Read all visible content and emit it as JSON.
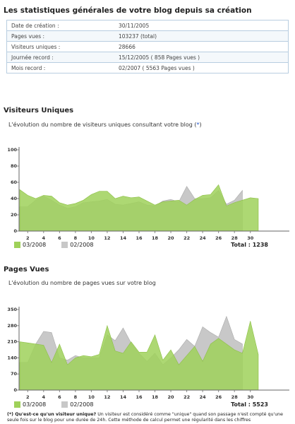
{
  "title": "Les statistiques générales de votre blog depuis sa création",
  "table": {
    "rows": [
      [
        "Date de création :",
        "30/11/2005"
      ],
      [
        "Pages vues :",
        "103237 (total)"
      ],
      [
        "Visiteurs uniques :",
        "28666"
      ],
      [
        "Journée record :",
        "15/12/2005 ( 858 Pages vues )"
      ],
      [
        "Mois record :",
        "02/2007 ( 5563 Pages vues )"
      ]
    ]
  },
  "chart_data": [
    {
      "type": "area",
      "title": "Visiteurs Uniques",
      "subtitle_pre": "L'évolution du nombre de visiteurs uniques consultant votre blog (",
      "subtitle_link": "*",
      "subtitle_post": ")",
      "x": [
        1,
        2,
        3,
        4,
        5,
        6,
        7,
        8,
        9,
        10,
        11,
        12,
        13,
        14,
        15,
        16,
        17,
        18,
        19,
        20,
        21,
        22,
        23,
        24,
        25,
        26,
        27,
        28,
        29,
        30,
        31
      ],
      "xlim": [
        1,
        31
      ],
      "xticks": [
        2,
        4,
        6,
        8,
        10,
        12,
        14,
        16,
        18,
        20,
        22,
        24,
        26,
        28,
        30
      ],
      "ylim": [
        0,
        100
      ],
      "yticks": [
        0,
        20,
        40,
        60,
        80,
        100
      ],
      "series": [
        {
          "name": "03/2008",
          "color": "#9fd15a",
          "values": [
            51,
            44,
            40,
            44,
            43,
            35,
            32,
            34,
            38,
            45,
            49,
            49,
            40,
            43,
            41,
            42,
            37,
            32,
            36,
            37,
            38,
            32,
            39,
            44,
            45,
            57,
            31,
            35,
            38,
            41,
            40
          ]
        },
        {
          "name": "02/2008",
          "color": "#c8c8c8",
          "values": [
            30,
            30,
            38,
            43,
            38,
            32,
            28,
            30,
            35,
            36,
            37,
            39,
            33,
            32,
            34,
            36,
            32,
            31,
            37,
            39,
            36,
            55,
            40,
            40,
            41,
            50,
            33,
            38,
            50,
            null,
            null
          ]
        }
      ],
      "total_label": "Total :",
      "total": 1238
    },
    {
      "type": "area",
      "title": "Pages Vues",
      "subtitle_pre": "L'évolution du nombre de pages vues sur votre blog",
      "x": [
        1,
        2,
        3,
        4,
        5,
        6,
        7,
        8,
        9,
        10,
        11,
        12,
        13,
        14,
        15,
        16,
        17,
        18,
        19,
        20,
        21,
        22,
        23,
        24,
        25,
        26,
        27,
        28,
        29,
        30,
        31
      ],
      "xlim": [
        1,
        31
      ],
      "xticks": [
        2,
        4,
        6,
        8,
        10,
        12,
        14,
        16,
        18,
        20,
        22,
        24,
        26,
        28,
        30
      ],
      "ylim": [
        0,
        350
      ],
      "yticks": [
        0,
        70,
        140,
        210,
        280,
        350
      ],
      "series": [
        {
          "name": "03/2008",
          "color": "#9fd15a",
          "values": [
            210,
            205,
            200,
            195,
            120,
            200,
            110,
            140,
            150,
            145,
            155,
            280,
            170,
            160,
            210,
            165,
            165,
            240,
            130,
            175,
            110,
            150,
            190,
            125,
            200,
            225,
            200,
            175,
            160,
            300,
            155
          ]
        },
        {
          "name": "02/2008",
          "color": "#c8c8c8",
          "values": [
            120,
            120,
            200,
            255,
            250,
            140,
            130,
            150,
            140,
            140,
            140,
            240,
            215,
            270,
            205,
            160,
            125,
            160,
            110,
            140,
            175,
            220,
            190,
            275,
            250,
            230,
            320,
            220,
            200,
            null,
            null
          ]
        }
      ],
      "total_label": "Total :",
      "total": 5523
    }
  ],
  "footnote": {
    "label": "(*) Qu'est-ce qu'un visiteur unique?",
    "text": " Un visiteur est considéré comme \"unique\" quand son passage n'est compté qu'une seule fois sur le blog pour une durée de 24h. Cette méthode de calcul permet une régularité dans les chiffres"
  }
}
